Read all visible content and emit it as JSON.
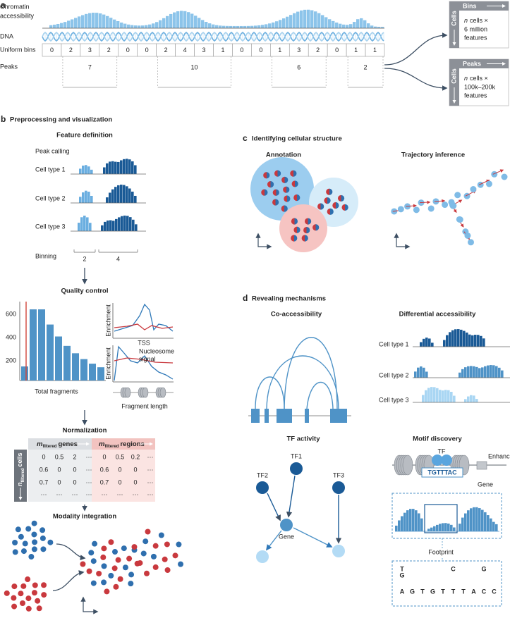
{
  "panel_a": {
    "label": "a",
    "track_labels": {
      "accessibility": [
        "Chromatin",
        "accessibility"
      ],
      "dna": "DNA",
      "bins": "Uniform bins",
      "peaks": "Peaks"
    },
    "bin_counts": [
      0,
      2,
      3,
      2,
      0,
      0,
      2,
      4,
      3,
      1,
      0,
      0,
      1,
      3,
      2,
      0,
      1,
      1
    ],
    "peak_counts": [
      7,
      10,
      6,
      2
    ],
    "outputs": [
      {
        "header": "Bins",
        "side": "Cells",
        "italic": "n",
        "lines": [
          "cells ×",
          "6 million",
          "features"
        ]
      },
      {
        "header": "Peaks",
        "side": "Cells",
        "italic": "n",
        "lines": [
          "cells ×",
          "100k–200k",
          "features"
        ]
      }
    ]
  },
  "panel_b": {
    "label": "b",
    "title": "Preprocessing and visualization",
    "feature_definition": {
      "title": "Feature definition",
      "peak_calling": "Peak calling",
      "cell_types": [
        "Cell type 1",
        "Cell type 2",
        "Cell type 3"
      ],
      "binning": "Binning",
      "bin_counts": [
        2,
        4
      ]
    },
    "quality_control": {
      "title": "Quality control",
      "yticks": [
        600,
        400,
        200
      ],
      "xlabel": "Total fragments",
      "enrichment_labels": [
        "Enrichment",
        "Enrichment"
      ],
      "tss": "TSS",
      "nucleosome": [
        "Nucleosome",
        "signal"
      ],
      "fragment_length": "Fragment length"
    },
    "normalization": {
      "title": "Normalization",
      "genes_header": {
        "main": "m",
        "sub": "filtered",
        "rest": "genes"
      },
      "regions_header": {
        "main": "m",
        "sub": "filtered",
        "rest": "regions"
      },
      "cells_header": {
        "main": "n",
        "sub": "filtered",
        "rest": "cells"
      },
      "genes": [
        [
          "0",
          "0.5",
          "2",
          "···"
        ],
        [
          "0.6",
          "0",
          "0",
          "···"
        ],
        [
          "0.7",
          "0",
          "0",
          "···"
        ],
        [
          "···",
          "···",
          "···",
          "···"
        ]
      ],
      "regions": [
        [
          "0",
          "0.5",
          "0.2",
          "···"
        ],
        [
          "0.6",
          "0",
          "0",
          "···"
        ],
        [
          "0.7",
          "0",
          "0",
          "···"
        ],
        [
          "···",
          "···",
          "···",
          "···"
        ]
      ]
    },
    "modality_integration": {
      "title": "Modality integration"
    }
  },
  "panel_c": {
    "label": "c",
    "title": "Identifying cellular structure",
    "annotation": "Annotation",
    "trajectory": "Trajectory inference"
  },
  "panel_d": {
    "label": "d",
    "title": "Revealing mechanisms",
    "coaccessibility": "Co-accessibility",
    "differential": {
      "title": "Differential accessibility",
      "cell_types": [
        "Cell type 1",
        "Cell type 2",
        "Cell type 3"
      ]
    },
    "tf_activity": {
      "title": "TF activity",
      "nodes": [
        "TF1",
        "TF2",
        "TF3",
        "Gene"
      ]
    },
    "motif": {
      "title": "Motif discovery",
      "tf": "TF",
      "sequence": "TGTTTAC",
      "enhancer": "Enhancer",
      "gene": "Gene",
      "footprint": "Footprint",
      "logo": [
        [
          "T",
          "G",
          "A"
        ],
        [
          "G"
        ],
        [
          "T"
        ],
        [
          "G"
        ],
        [
          "T"
        ],
        [
          "C",
          "T"
        ],
        [
          "T"
        ],
        [
          "A"
        ],
        [
          "G",
          "C"
        ],
        [
          "C"
        ]
      ]
    }
  }
}
